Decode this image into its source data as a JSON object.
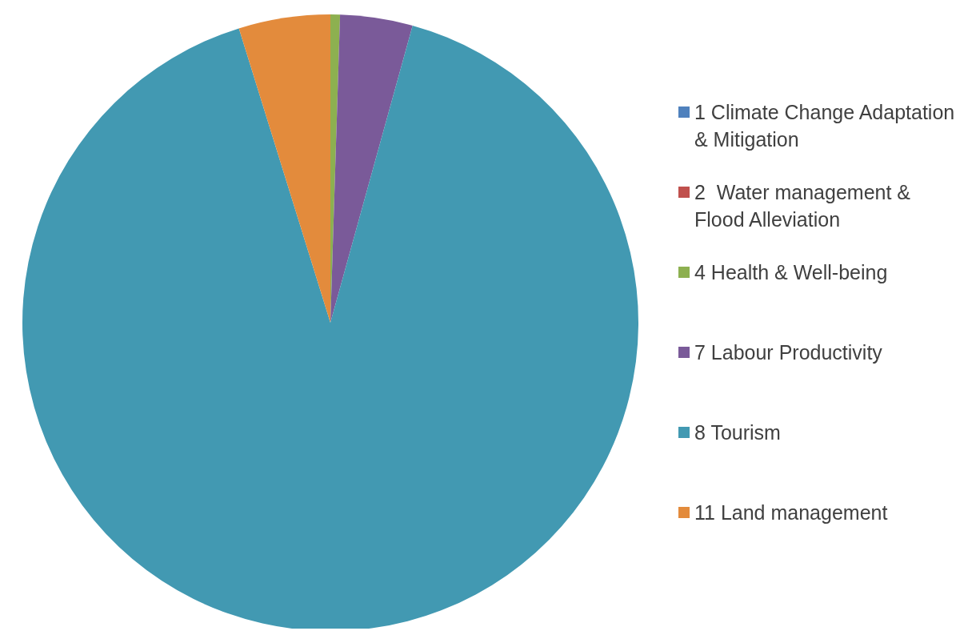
{
  "chart_data": {
    "type": "pie",
    "categories": [
      "1 Climate Change Adaptation & Mitigation",
      "2  Water management & Flood Alleviation",
      "4 Health & Well-being",
      "7 Labour Productivity",
      "8 Tourism",
      "11 Land management"
    ],
    "values": [
      0,
      0,
      0.5,
      3.8,
      90.9,
      4.8
    ],
    "colors": [
      "#4f81bd",
      "#c0504d",
      "#8db050",
      "#7a5a99",
      "#4299b2",
      "#e38b3c"
    ],
    "legend": "right"
  }
}
